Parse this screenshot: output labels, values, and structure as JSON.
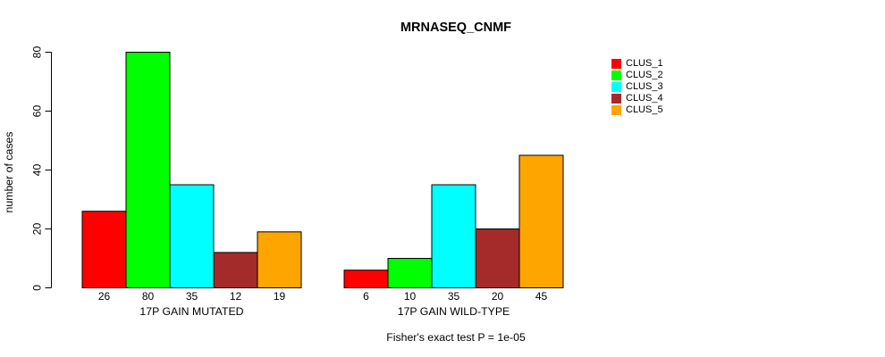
{
  "title": "MRNASEQ_CNMF",
  "ylabel": "number of cases",
  "footer": "Fisher's exact test P = 1e-05",
  "legend": {
    "items": [
      {
        "label": "CLUS_1",
        "color": "#FF0000"
      },
      {
        "label": "CLUS_2",
        "color": "#00FF00"
      },
      {
        "label": "CLUS_3",
        "color": "#00FFFF"
      },
      {
        "label": "CLUS_4",
        "color": "#A52A2A"
      },
      {
        "label": "CLUS_5",
        "color": "#FFA500"
      }
    ]
  },
  "chart_data": {
    "type": "bar",
    "title": "MRNASEQ_CNMF",
    "ylabel": "number of cases",
    "xlabel": "",
    "categories": [
      "17P GAIN MUTATED",
      "17P GAIN WILD-TYPE"
    ],
    "series": [
      {
        "name": "CLUS_1",
        "color": "#FF0000",
        "values": [
          26,
          6
        ]
      },
      {
        "name": "CLUS_2",
        "color": "#00FF00",
        "values": [
          80,
          10
        ]
      },
      {
        "name": "CLUS_3",
        "color": "#00FFFF",
        "values": [
          35,
          35
        ]
      },
      {
        "name": "CLUS_4",
        "color": "#A52A2A",
        "values": [
          12,
          20
        ]
      },
      {
        "name": "CLUS_5",
        "color": "#FFA500",
        "values": [
          19,
          45
        ]
      }
    ],
    "bar_value_labels": [
      [
        26,
        80,
        35,
        12,
        19
      ],
      [
        6,
        10,
        35,
        20,
        45
      ]
    ],
    "yticks": [
      0,
      20,
      40,
      60,
      80
    ],
    "ylim": [
      0,
      80
    ],
    "grid": false,
    "legend_position": "right",
    "annotation": "Fisher's exact test P = 1e-05"
  }
}
